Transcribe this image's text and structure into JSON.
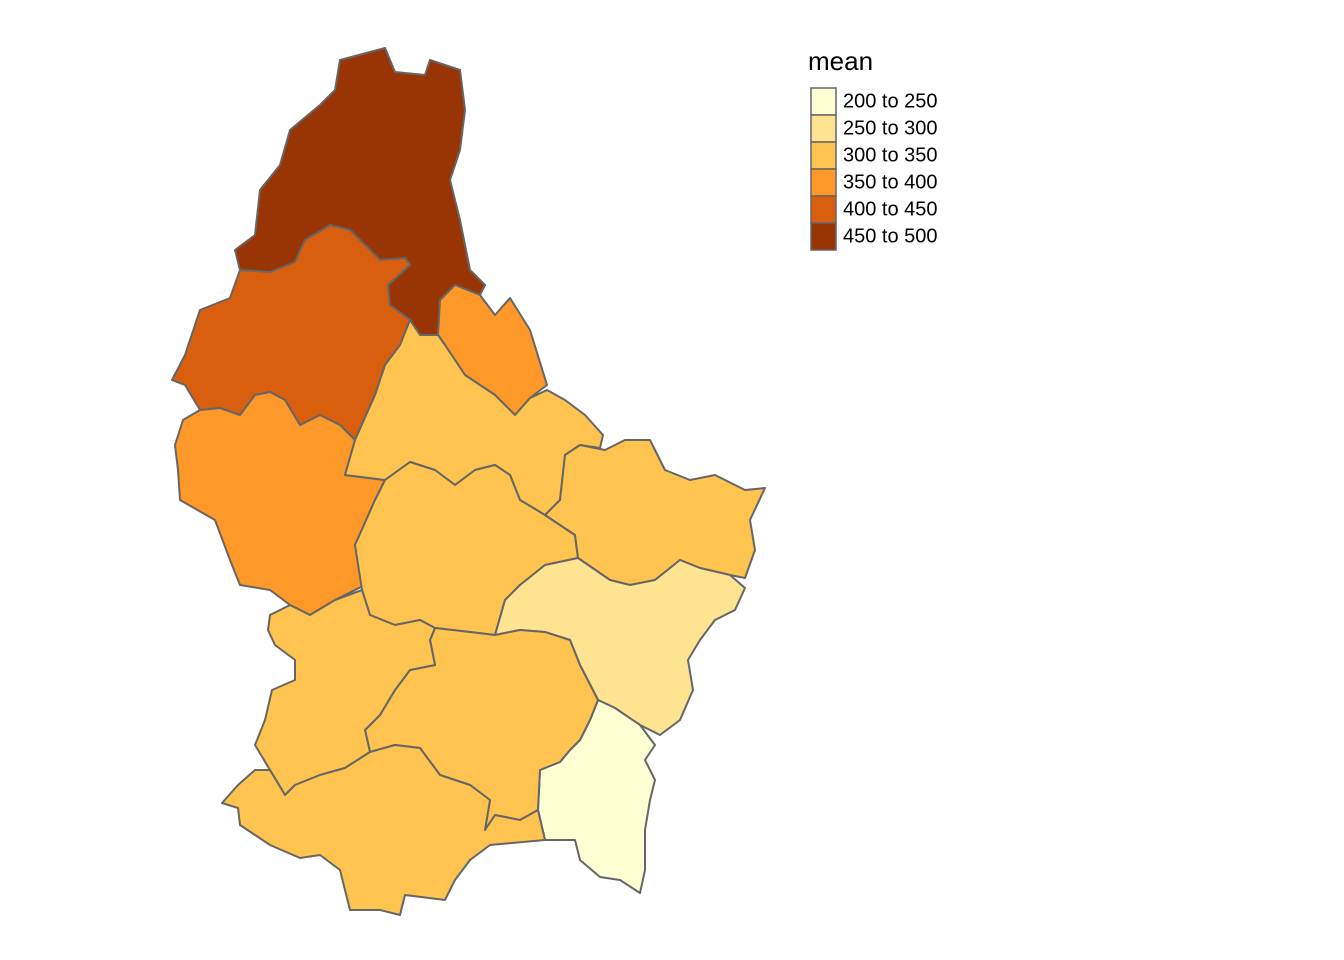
{
  "legend": {
    "title": "mean",
    "items": [
      {
        "label": "200 to 250",
        "color": "#ffffd4"
      },
      {
        "label": "250 to 300",
        "color": "#fee391"
      },
      {
        "label": "300 to 350",
        "color": "#fec44f"
      },
      {
        "label": "350 to 400",
        "color": "#fe9929"
      },
      {
        "label": "400 to 450",
        "color": "#d95f0e"
      },
      {
        "label": "450 to 500",
        "color": "#993404"
      }
    ]
  }
}
